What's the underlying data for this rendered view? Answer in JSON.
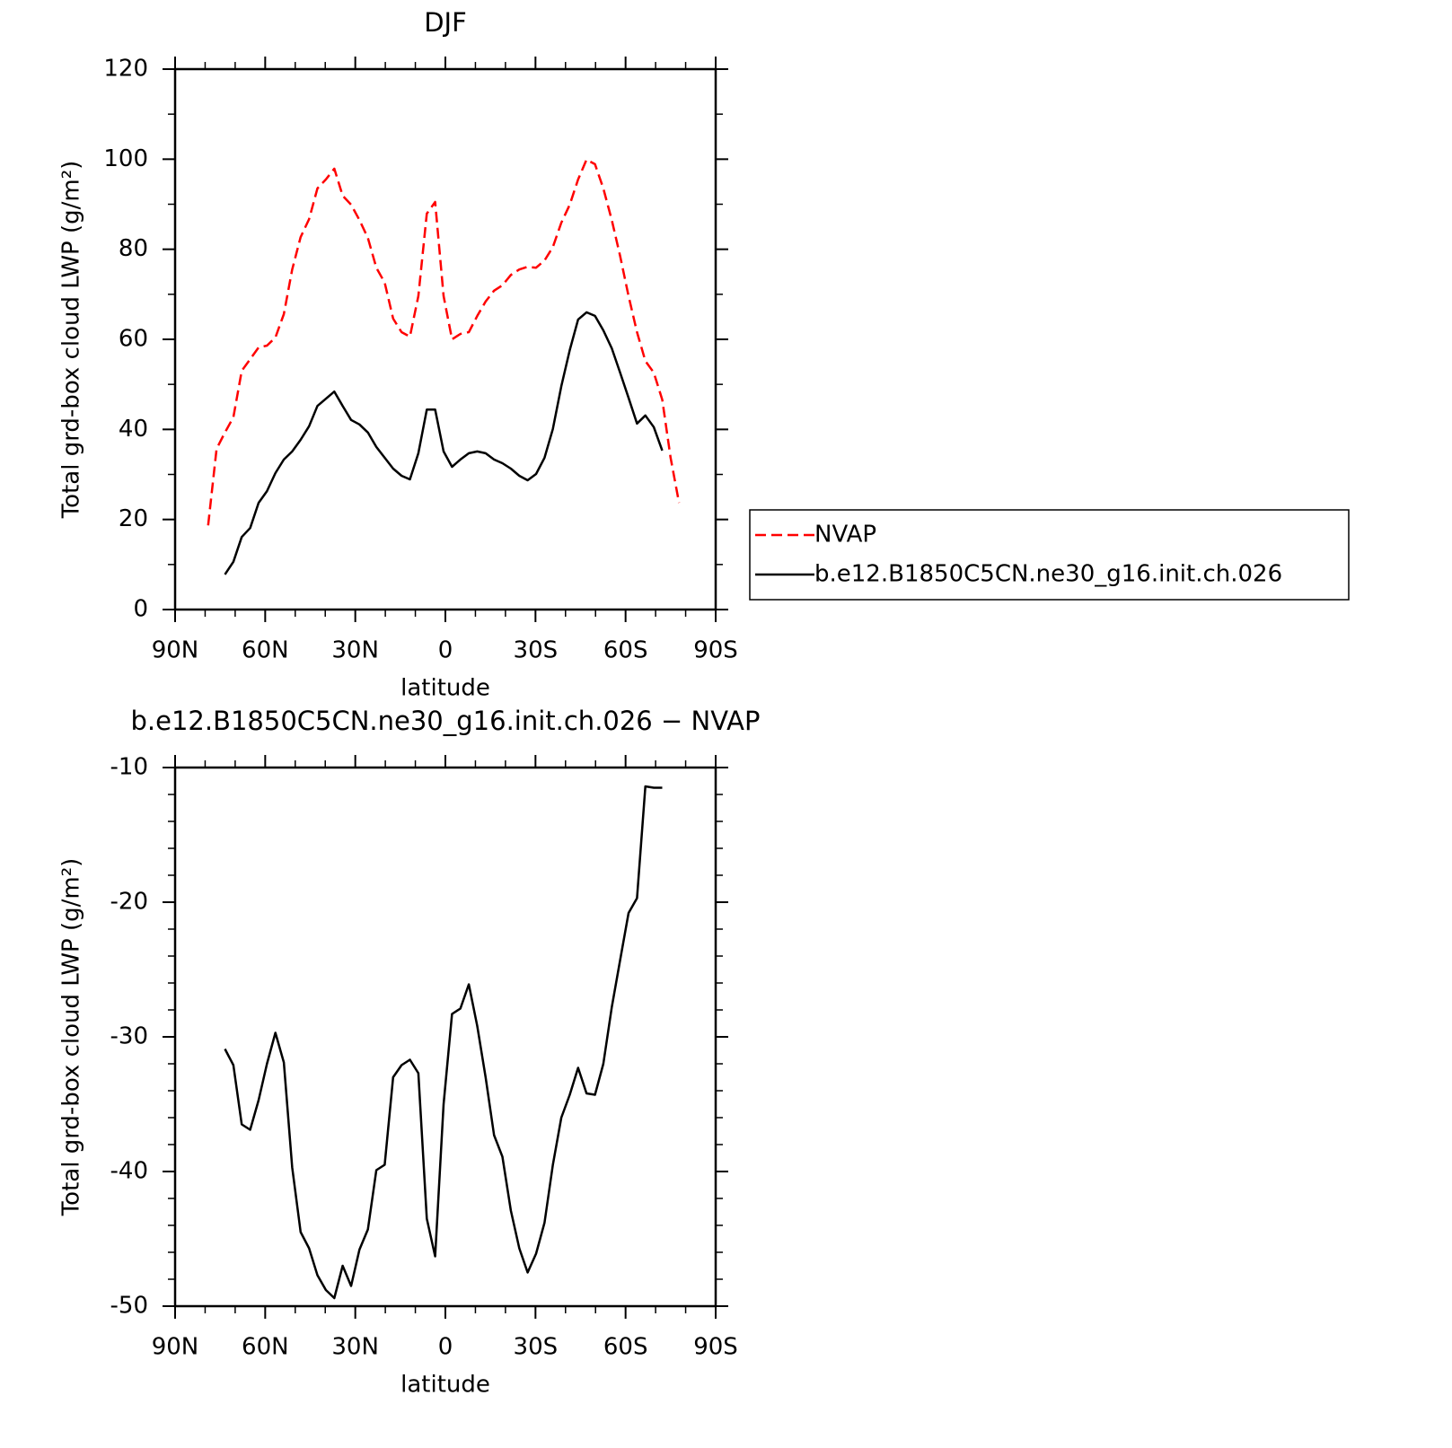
{
  "chart_data": [
    {
      "type": "line",
      "title": "DJF",
      "xlabel": "latitude",
      "ylabel": "Total grd-box cloud LWP (g/m²)",
      "x": [
        79.0,
        76.2,
        73.4,
        70.6,
        67.8,
        65.0,
        62.2,
        59.4,
        56.6,
        53.8,
        51.0,
        48.2,
        45.4,
        42.6,
        39.8,
        37.0,
        34.2,
        31.4,
        28.6,
        25.8,
        23.0,
        20.2,
        17.4,
        14.6,
        11.8,
        9.0,
        6.2,
        3.4,
        0.6,
        -2.2,
        -5.0,
        -7.8,
        -10.6,
        -13.4,
        -16.2,
        -19.0,
        -21.8,
        -24.6,
        -27.4,
        -30.2,
        -33.0,
        -35.8,
        -38.6,
        -41.4,
        -44.2,
        -47.0,
        -49.8,
        -52.6,
        -55.4,
        -58.2,
        -61.0,
        -63.8,
        -66.6,
        -69.4,
        -72.2,
        -75.0,
        -77.8
      ],
      "series": [
        {
          "name": "NVAP",
          "color": "#ff0000",
          "linestyle": "dashed",
          "values": [
            18.7,
            35.7,
            39.3,
            42.7,
            53.0,
            55.6,
            58.2,
            58.6,
            60.4,
            65.6,
            75.5,
            82.7,
            86.7,
            93.5,
            95.5,
            97.9,
            91.9,
            89.9,
            86.5,
            82.5,
            75.9,
            72.6,
            64.6,
            61.6,
            60.6,
            69.6,
            87.9,
            90.5,
            69.6,
            60.0,
            61.2,
            61.6,
            65.2,
            68.4,
            70.8,
            72.0,
            74.3,
            75.5,
            76.1,
            75.9,
            77.5,
            80.5,
            85.9,
            89.9,
            95.5,
            99.9,
            98.9,
            93.5,
            86.5,
            78.5,
            69.6,
            61.6,
            55.2,
            52.6,
            46.6,
            33.7,
            23.7
          ]
        },
        {
          "name": "b.e12.B1850C5CN.ne30_g16.init.ch.026",
          "color": "#000000",
          "linestyle": "solid",
          "values": [
            null,
            null,
            7.8,
            10.6,
            16.1,
            18.1,
            23.7,
            26.3,
            30.3,
            33.3,
            35.1,
            37.7,
            40.7,
            45.2,
            46.8,
            48.4,
            45.2,
            42.1,
            41.1,
            39.3,
            36.1,
            33.7,
            31.3,
            29.7,
            28.9,
            34.7,
            44.4,
            44.4,
            35.1,
            31.7,
            33.3,
            34.7,
            35.1,
            34.7,
            33.3,
            32.5,
            31.3,
            29.7,
            28.7,
            30.1,
            33.7,
            40.1,
            49.6,
            57.6,
            64.4,
            66.0,
            65.2,
            62.0,
            58.0,
            52.6,
            47.0,
            41.3,
            43.1,
            40.5,
            35.3,
            null,
            null
          ]
        }
      ],
      "xlim": [
        90,
        -90
      ],
      "xticks": [
        {
          "value": 90,
          "label": "90N"
        },
        {
          "value": 60,
          "label": "60N"
        },
        {
          "value": 30,
          "label": "30N"
        },
        0,
        {
          "value": -30,
          "label": "30S"
        },
        {
          "value": -60,
          "label": "60S"
        },
        {
          "value": -90,
          "label": "90S"
        }
      ],
      "xminorticks": [
        80,
        70,
        50,
        40,
        20,
        10,
        -10,
        -20,
        -40,
        -50,
        -70,
        -80
      ],
      "ylim": [
        0,
        120
      ],
      "yticks": [
        0,
        20,
        40,
        60,
        80,
        100,
        120
      ],
      "yminorticks": [
        10,
        30,
        50,
        70,
        90,
        110
      ],
      "legend": "right"
    },
    {
      "type": "line",
      "title": "b.e12.B1850C5CN.ne30_g16.init.ch.026 − NVAP",
      "xlabel": "latitude",
      "ylabel": "Total grd-box cloud LWP (g/m²)",
      "x": [
        79.0,
        76.2,
        73.4,
        70.6,
        67.8,
        65.0,
        62.2,
        59.4,
        56.6,
        53.8,
        51.0,
        48.2,
        45.4,
        42.6,
        39.8,
        37.0,
        34.2,
        31.4,
        28.6,
        25.8,
        23.0,
        20.2,
        17.4,
        14.6,
        11.8,
        9.0,
        6.2,
        3.4,
        0.6,
        -2.2,
        -5.0,
        -7.8,
        -10.6,
        -13.4,
        -16.2,
        -19.0,
        -21.8,
        -24.6,
        -27.4,
        -30.2,
        -33.0,
        -35.8,
        -38.6,
        -41.4,
        -44.2,
        -47.0,
        -49.8,
        -52.6,
        -55.4,
        -58.2,
        -61.0,
        -63.8,
        -66.6,
        -69.4,
        -72.2,
        -75.0,
        -77.8
      ],
      "series": [
        {
          "color": "#000000",
          "linestyle": "solid",
          "values": [
            null,
            null,
            -30.9,
            -32.1,
            -36.5,
            -36.9,
            -34.7,
            -32.0,
            -29.7,
            -31.9,
            -39.7,
            -44.5,
            -45.7,
            -47.7,
            -48.8,
            -49.4,
            -47.0,
            -48.5,
            -45.8,
            -44.3,
            -39.9,
            -39.5,
            -33.0,
            -32.1,
            -31.7,
            -32.7,
            -43.5,
            -46.3,
            -35.0,
            -28.3,
            -27.9,
            -26.1,
            -29.2,
            -33.0,
            -37.3,
            -38.9,
            -42.9,
            -45.7,
            -47.5,
            -46.1,
            -43.8,
            -39.5,
            -36.0,
            -34.3,
            -32.3,
            -34.2,
            -34.3,
            -32.0,
            -27.8,
            -24.3,
            -20.8,
            -19.7,
            -11.4,
            -11.5,
            -11.5,
            null,
            null
          ]
        }
      ],
      "xlim": [
        90,
        -90
      ],
      "xticks": [
        {
          "value": 90,
          "label": "90N"
        },
        {
          "value": 60,
          "label": "60N"
        },
        {
          "value": 30,
          "label": "30N"
        },
        0,
        {
          "value": -30,
          "label": "30S"
        },
        {
          "value": -60,
          "label": "60S"
        },
        {
          "value": -90,
          "label": "90S"
        }
      ],
      "xminorticks": [
        80,
        70,
        50,
        40,
        20,
        10,
        -10,
        -20,
        -40,
        -50,
        -70,
        -80
      ],
      "ylim": [
        -50,
        -10
      ],
      "yticks": [
        -50,
        -40,
        -30,
        -20,
        -10
      ],
      "yminorticks": [
        -48,
        -46,
        -44,
        -42,
        -38,
        -36,
        -34,
        -32,
        -28,
        -26,
        -24,
        -22,
        -18,
        -16,
        -14,
        -12
      ]
    }
  ]
}
